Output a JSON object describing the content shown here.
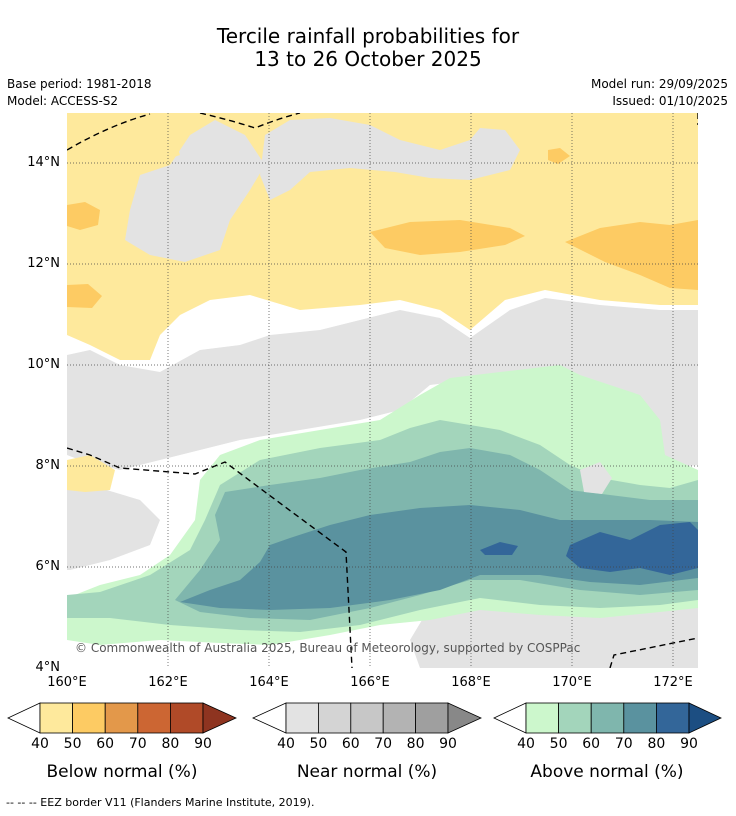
{
  "title_line1": "Tercile rainfall probabilities for",
  "title_line2": "13 to 26 October 2025",
  "base_period": "Base period: 1981-2018",
  "model": "Model: ACCESS-S2",
  "model_run": "Model run: 29/09/2025",
  "issued": "Issued: 01/10/2025",
  "copyright": "© Commonwealth of Australia 2025, Bureau of Meteorology, supported by COSPPac",
  "footer": "--  --  -- EEZ border V11 (Flanders Marine Institute, 2019).",
  "map": {
    "lat_labels": [
      "14°N",
      "12°N",
      "10°N",
      "8°N",
      "6°N",
      "4°N"
    ],
    "lon_labels": [
      "160°E",
      "162°E",
      "164°E",
      "166°E",
      "168°E",
      "170°E",
      "172°E"
    ]
  },
  "colorbars": {
    "below": {
      "title": "Below normal (%)",
      "ticks": [
        "40",
        "50",
        "60",
        "70",
        "80",
        "90"
      ],
      "colors": [
        "#fee99c",
        "#fdcb63",
        "#e3984a",
        "#cc6633",
        "#b04a28",
        "#8e3420"
      ]
    },
    "near": {
      "title": "Near normal (%)",
      "ticks": [
        "40",
        "50",
        "60",
        "70",
        "80",
        "90"
      ],
      "colors": [
        "#e3e3e3",
        "#d4d4d4",
        "#c7c7c7",
        "#b3b3b3",
        "#9f9f9f",
        "#888888"
      ]
    },
    "above": {
      "title": "Above normal (%)",
      "ticks": [
        "40",
        "50",
        "60",
        "70",
        "80",
        "90"
      ],
      "colors": [
        "#ccf7cc",
        "#a3d5bb",
        "#7fb6ad",
        "#5a929f",
        "#336699",
        "#1c4e82"
      ]
    }
  }
}
